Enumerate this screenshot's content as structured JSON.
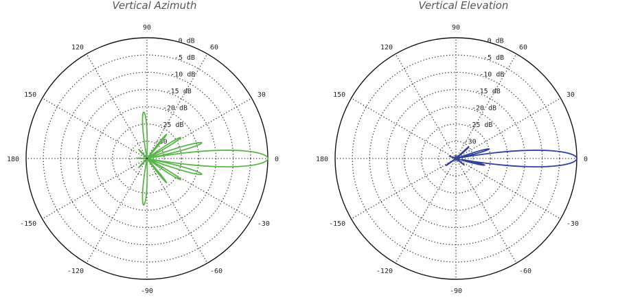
{
  "chart_data": [
    {
      "type": "polar-line",
      "title": "Vertical Azimuth",
      "angular_unit": "degrees",
      "radial_unit": "dB",
      "radial_range": [
        -35,
        0
      ],
      "ring_labels": [
        "0 dB",
        "-5 dB",
        "-10 dB",
        "-15 dB",
        "-20 dB",
        "-25 dB",
        "-30"
      ],
      "ring_values": [
        0,
        -5,
        -10,
        -15,
        -20,
        -25,
        -30
      ],
      "angle_labels": [
        "0",
        "30",
        "60",
        "90",
        "120",
        "150",
        "180",
        "-150",
        "-120",
        "-90",
        "-60",
        "-30"
      ],
      "angle_values": [
        0,
        30,
        60,
        90,
        120,
        150,
        180,
        -150,
        -120,
        -90,
        -60,
        -30
      ],
      "grid": true,
      "color": "#5ab54a",
      "series": [
        {
          "lobes": [
            {
              "center": 0,
              "width": 6,
              "peak": 0
            },
            {
              "center": 16,
              "width": 4,
              "peak": -18.5
            },
            {
              "center": -16,
              "width": 4,
              "peak": -18.5
            },
            {
              "center": 32,
              "width": 4,
              "peak": -23.5
            },
            {
              "center": -32,
              "width": 4,
              "peak": -23.5
            },
            {
              "center": 51,
              "width": 3.5,
              "peak": -26
            },
            {
              "center": -51,
              "width": 3.5,
              "peak": -26
            },
            {
              "center": 94,
              "width": 6,
              "peak": -21.5
            },
            {
              "center": -94,
              "width": 6,
              "peak": -21.5
            },
            {
              "center": 132,
              "width": 6,
              "peak": -31.5
            },
            {
              "center": -132,
              "width": 6,
              "peak": -31.5
            },
            {
              "center": 178,
              "width": 5,
              "peak": -32
            }
          ]
        }
      ]
    },
    {
      "type": "polar-line",
      "title": "Vertical Elevation",
      "angular_unit": "degrees",
      "radial_unit": "dB",
      "radial_range": [
        -35,
        0
      ],
      "ring_labels": [
        "0 dB",
        "-5 dB",
        "-10 dB",
        "-15 dB",
        "-20 dB",
        "-25 dB",
        "-30"
      ],
      "ring_values": [
        0,
        -5,
        -10,
        -15,
        -20,
        -25,
        -30
      ],
      "angle_labels": [
        "0",
        "30",
        "60",
        "90",
        "120",
        "150",
        "180",
        "-150",
        "-120",
        "-90",
        "-60",
        "-30"
      ],
      "angle_values": [
        0,
        30,
        60,
        90,
        120,
        150,
        180,
        -150,
        -120,
        -90,
        -60,
        -30
      ],
      "grid": true,
      "color": "#2e3f9a",
      "series": [
        {
          "lobes": [
            {
              "center": 0,
              "width": 6,
              "peak": 0
            },
            {
              "center": 16,
              "width": 4,
              "peak": -25
            },
            {
              "center": -13,
              "width": 4,
              "peak": -26.5
            },
            {
              "center": 42,
              "width": 5,
              "peak": -30
            },
            {
              "center": -38,
              "width": 4,
              "peak": -32
            },
            {
              "center": 90,
              "width": 6,
              "peak": -34
            },
            {
              "center": -145,
              "width": 5,
              "peak": -31.5
            },
            {
              "center": 160,
              "width": 5,
              "peak": -33
            }
          ]
        }
      ]
    }
  ]
}
